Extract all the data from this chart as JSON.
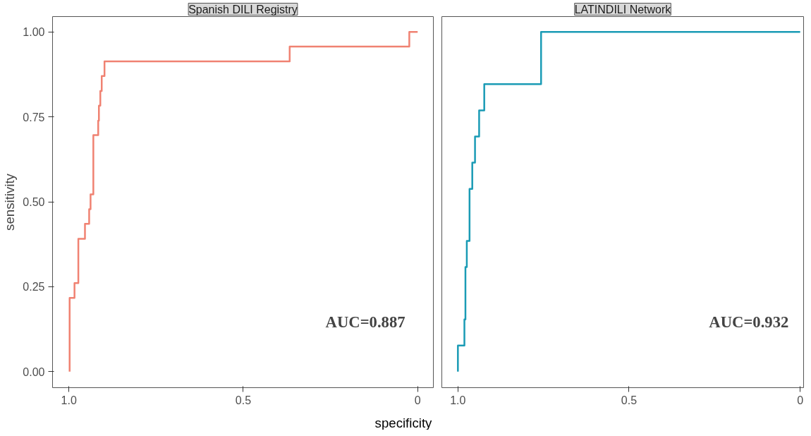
{
  "chart_data": [
    {
      "type": "step",
      "title": "Spanish DILI Registry",
      "ylabel": "sensitivity",
      "xlabel": "specificity",
      "x": [
        0.998,
        0.984,
        0.973,
        0.954,
        0.942,
        0.938,
        0.93,
        0.916,
        0.914,
        0.91,
        0.906,
        0.898,
        0.367,
        0.024,
        0.0
      ],
      "series": [
        {
          "color": "#f08272",
          "values": [
            0.0,
            0.217,
            0.261,
            0.391,
            0.435,
            0.478,
            0.522,
            0.696,
            0.739,
            0.783,
            0.826,
            0.87,
            0.913,
            0.957,
            1.0
          ]
        }
      ],
      "xlim": [
        1.047,
        -0.045
      ],
      "ylim": [
        -0.047,
        1.045
      ],
      "xticks": [
        {
          "value": 1,
          "label": "1.0"
        },
        0.5,
        0
      ],
      "yticks": [
        {
          "value": 0,
          "label": "0.00"
        },
        {
          "value": 0.25,
          "label": "0.25"
        },
        {
          "value": 0.5,
          "label": "0.50"
        },
        {
          "value": 0.75,
          "label": "0.75"
        },
        {
          "value": 1,
          "label": "1.00"
        }
      ],
      "annotations": [
        "AUC=0.887"
      ]
    },
    {
      "type": "step",
      "title": "LATINDILI Network",
      "x": [
        1.0,
        0.981,
        0.978,
        0.974,
        0.966,
        0.958,
        0.95,
        0.938,
        0.923,
        0.757,
        0.0
      ],
      "series": [
        {
          "color": "#1a9bb5",
          "values": [
            0.0,
            0.077,
            0.154,
            0.308,
            0.385,
            0.538,
            0.615,
            0.692,
            0.769,
            0.846,
            1.0
          ]
        }
      ],
      "xlim": [
        1.047,
        -0.01
      ],
      "ylim": [
        -0.047,
        1.045
      ],
      "xticks": [
        {
          "value": 1,
          "label": "1.0"
        },
        0.5,
        0
      ],
      "tick_labels": "x",
      "annotations": [
        "AUC=0.932"
      ]
    }
  ]
}
